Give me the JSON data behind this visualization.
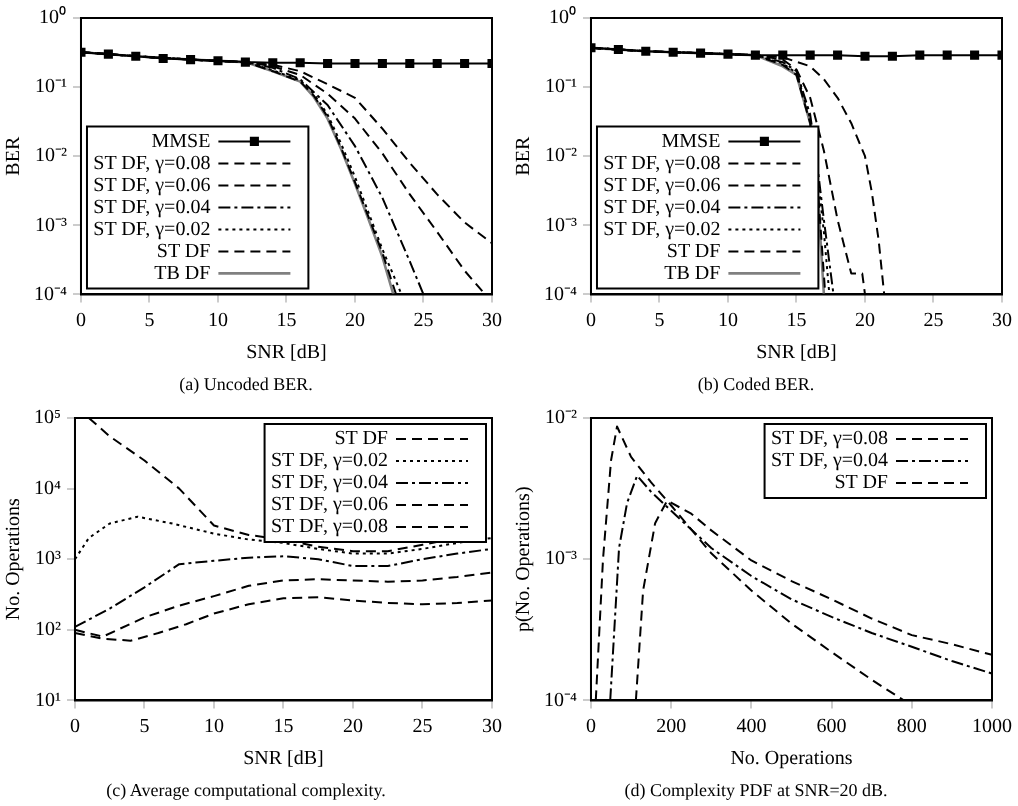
{
  "chart_data": [
    {
      "type": "line",
      "title": "(a) Uncoded BER.",
      "xlabel": "SNR [dB]",
      "ylabel": "BER",
      "log": "y",
      "grid": false,
      "legend": "bottom left",
      "xlim": [
        0,
        30
      ],
      "xticks": [
        0,
        5,
        10,
        15,
        20,
        25,
        30
      ],
      "ylim": [
        0.0001,
        1
      ],
      "yticks": [
        {
          "value": 0.0001,
          "label": "10⁻⁴"
        },
        {
          "value": 0.001,
          "label": "10⁻³"
        },
        {
          "value": 0.01,
          "label": "10⁻²"
        },
        {
          "value": 0.1,
          "label": "10⁻¹"
        },
        {
          "value": 1,
          "label": "10⁰"
        }
      ],
      "series": [
        {
          "name": "MMSE",
          "color": "#000000",
          "marker": "square",
          "line_style": "solid",
          "x": [
            0,
            2,
            4,
            6,
            8,
            10,
            12,
            14,
            16,
            18,
            20,
            22,
            24,
            26,
            28,
            30
          ],
          "values": [
            0.32,
            0.3,
            0.28,
            0.26,
            0.25,
            0.24,
            0.23,
            0.225,
            0.225,
            0.22,
            0.22,
            0.22,
            0.22,
            0.22,
            0.22,
            0.22
          ]
        },
        {
          "name": "ST DF, γ=0.08",
          "color": "#000000",
          "marker": "none",
          "line_style": "dashed",
          "x": [
            0,
            4,
            8,
            12,
            14,
            16,
            18,
            20,
            22,
            24,
            26,
            28,
            30
          ],
          "values": [
            0.32,
            0.28,
            0.25,
            0.23,
            0.21,
            0.17,
            0.11,
            0.07,
            0.025,
            0.008,
            0.0028,
            0.0011,
            0.00055
          ]
        },
        {
          "name": "ST DF, γ=0.06",
          "color": "#000000",
          "marker": "none",
          "line_style": "dashed",
          "x": [
            0,
            4,
            8,
            12,
            14,
            16,
            18,
            20,
            22,
            24,
            26,
            28,
            29.5
          ],
          "values": [
            0.32,
            0.28,
            0.25,
            0.23,
            0.2,
            0.15,
            0.08,
            0.035,
            0.011,
            0.0028,
            0.0008,
            0.00022,
            0.0001
          ]
        },
        {
          "name": "ST DF, γ=0.04",
          "color": "#000000",
          "marker": "none",
          "line_style": "dashdot",
          "x": [
            0,
            4,
            8,
            12,
            14,
            16,
            18,
            20,
            22,
            24,
            25
          ],
          "values": [
            0.32,
            0.28,
            0.25,
            0.23,
            0.19,
            0.13,
            0.055,
            0.014,
            0.0025,
            0.0003,
            0.0001
          ]
        },
        {
          "name": "ST DF, γ=0.02",
          "color": "#000000",
          "marker": "none",
          "line_style": "dotted",
          "x": [
            0,
            4,
            8,
            12,
            14,
            16,
            17,
            18,
            19,
            20,
            21,
            22,
            23.4
          ],
          "values": [
            0.32,
            0.28,
            0.25,
            0.23,
            0.175,
            0.125,
            0.08,
            0.04,
            0.015,
            0.005,
            0.0015,
            0.00045,
            0.0001
          ]
        },
        {
          "name": "ST DF",
          "color": "#000000",
          "marker": "none",
          "line_style": "dashed",
          "x": [
            0,
            4,
            8,
            12,
            14,
            16,
            17,
            18,
            19,
            20,
            21,
            22,
            23
          ],
          "values": [
            0.32,
            0.28,
            0.25,
            0.23,
            0.17,
            0.12,
            0.075,
            0.037,
            0.013,
            0.0042,
            0.0013,
            0.0004,
            0.0001
          ]
        },
        {
          "name": "TB DF",
          "color": "#808080",
          "marker": "none",
          "line_style": "solid",
          "x": [
            0,
            4,
            8,
            12,
            14,
            16,
            17,
            18,
            19,
            20,
            21,
            22,
            22.8
          ],
          "values": [
            0.32,
            0.28,
            0.25,
            0.23,
            0.17,
            0.12,
            0.072,
            0.035,
            0.0125,
            0.004,
            0.0012,
            0.00035,
            0.0001
          ]
        }
      ]
    },
    {
      "type": "line",
      "title": "(b) Coded BER.",
      "xlabel": "SNR [dB]",
      "ylabel": "BER",
      "log": "y",
      "grid": false,
      "legend": "bottom left",
      "xlim": [
        0,
        30
      ],
      "xticks": [
        0,
        5,
        10,
        15,
        20,
        25,
        30
      ],
      "ylim": [
        0.0001,
        1
      ],
      "yticks": [
        {
          "value": 0.0001,
          "label": "10⁻⁴"
        },
        {
          "value": 0.001,
          "label": "10⁻³"
        },
        {
          "value": 0.01,
          "label": "10⁻²"
        },
        {
          "value": 0.1,
          "label": "10⁻¹"
        },
        {
          "value": 1,
          "label": "10⁰"
        }
      ],
      "series": [
        {
          "name": "MMSE",
          "color": "#000000",
          "marker": "square",
          "line_style": "solid",
          "x": [
            0,
            2,
            4,
            6,
            8,
            10,
            12,
            14,
            16,
            18,
            20,
            22,
            24,
            26,
            28,
            30
          ],
          "values": [
            0.37,
            0.35,
            0.33,
            0.32,
            0.31,
            0.3,
            0.29,
            0.29,
            0.29,
            0.29,
            0.28,
            0.28,
            0.29,
            0.29,
            0.29,
            0.29
          ]
        },
        {
          "name": "ST DF, γ=0.08",
          "color": "#000000",
          "marker": "none",
          "line_style": "dashed",
          "x": [
            0,
            4,
            8,
            12,
            14,
            16,
            17,
            18,
            19,
            20,
            20.5,
            21,
            21.4
          ],
          "values": [
            0.37,
            0.33,
            0.31,
            0.29,
            0.27,
            0.2,
            0.13,
            0.07,
            0.03,
            0.01,
            0.003,
            0.0006,
            0.0001
          ]
        },
        {
          "name": "ST DF, γ=0.06",
          "color": "#000000",
          "marker": "none",
          "line_style": "dashed",
          "x": [
            0,
            4,
            8,
            12,
            14,
            15,
            16,
            17,
            18,
            19,
            19.8,
            20
          ],
          "values": [
            0.37,
            0.33,
            0.31,
            0.29,
            0.25,
            0.18,
            0.07,
            0.012,
            0.0012,
            0.0002,
            0.0002,
            0.0001
          ]
        },
        {
          "name": "ST DF, γ=0.04",
          "color": "#000000",
          "marker": "none",
          "line_style": "dashdot",
          "x": [
            0,
            4,
            8,
            12,
            14,
            15,
            16,
            16.5,
            17,
            17.7
          ],
          "values": [
            0.37,
            0.33,
            0.31,
            0.29,
            0.23,
            0.17,
            0.04,
            0.008,
            0.0012,
            0.0001
          ]
        },
        {
          "name": "ST DF, γ=0.02",
          "color": "#000000",
          "marker": "none",
          "line_style": "dotted",
          "x": [
            0,
            4,
            8,
            12,
            14,
            15,
            16,
            16.5,
            17,
            17.4
          ],
          "values": [
            0.37,
            0.33,
            0.31,
            0.29,
            0.22,
            0.16,
            0.035,
            0.006,
            0.0008,
            0.0001
          ]
        },
        {
          "name": "ST DF",
          "color": "#000000",
          "marker": "none",
          "line_style": "dashed",
          "x": [
            0,
            4,
            8,
            12,
            14,
            15,
            16,
            16.5,
            17.1
          ],
          "values": [
            0.37,
            0.33,
            0.31,
            0.29,
            0.21,
            0.15,
            0.03,
            0.005,
            0.0001
          ]
        },
        {
          "name": "TB DF",
          "color": "#808080",
          "marker": "none",
          "line_style": "solid",
          "x": [
            0,
            4,
            8,
            12,
            14,
            15,
            16,
            16.5,
            17
          ],
          "values": [
            0.37,
            0.33,
            0.31,
            0.29,
            0.2,
            0.15,
            0.03,
            0.004,
            0.0001
          ]
        }
      ]
    },
    {
      "type": "line",
      "title": "(c) Average computational complexity.",
      "xlabel": "SNR [dB]",
      "ylabel": "No. Operations",
      "log": "y",
      "grid": false,
      "legend": "top right",
      "xlim": [
        0,
        30
      ],
      "xticks": [
        0,
        5,
        10,
        15,
        20,
        25,
        30
      ],
      "ylim": [
        10,
        100000
      ],
      "yticks": [
        {
          "value": 10,
          "label": "10¹"
        },
        {
          "value": 100,
          "label": "10²"
        },
        {
          "value": 1000,
          "label": "10³"
        },
        {
          "value": 10000,
          "label": "10⁴"
        },
        {
          "value": 100000,
          "label": "10⁵"
        }
      ],
      "series": [
        {
          "name": "ST DF",
          "color": "#000000",
          "marker": "none",
          "line_style": "dashed",
          "x": [
            1,
            2.5,
            5,
            7.5,
            10,
            12.5,
            15,
            17.5,
            20,
            22.5,
            25,
            27.5,
            30
          ],
          "values": [
            100000,
            55000,
            25000,
            10000,
            3000,
            2200,
            1900,
            1500,
            1300,
            1300,
            1600,
            2000,
            2500
          ]
        },
        {
          "name": "ST DF, γ=0.02",
          "color": "#000000",
          "marker": "none",
          "line_style": "dotted",
          "x": [
            0,
            1,
            2.5,
            4.5,
            7,
            10,
            12.5,
            15,
            17.5,
            20,
            22.5,
            25,
            27.5,
            30
          ],
          "values": [
            1000,
            2000,
            3200,
            4000,
            3200,
            2300,
            1900,
            1700,
            1400,
            1200,
            1200,
            1400,
            1700,
            2000
          ]
        },
        {
          "name": "ST DF, γ=0.04",
          "color": "#000000",
          "marker": "none",
          "line_style": "dashdot",
          "x": [
            0,
            2.5,
            5,
            7.5,
            10,
            12.5,
            15,
            17.5,
            20,
            22.5,
            25,
            27.5,
            30
          ],
          "values": [
            110,
            200,
            400,
            850,
            950,
            1050,
            1100,
            1000,
            800,
            800,
            1000,
            1200,
            1400
          ]
        },
        {
          "name": "ST DF, γ=0.06",
          "color": "#000000",
          "marker": "none",
          "line_style": "dashed",
          "x": [
            0,
            2,
            5,
            7.5,
            10,
            12.5,
            15,
            17.5,
            20,
            22.5,
            25,
            27.5,
            30
          ],
          "values": [
            100,
            80,
            150,
            220,
            300,
            420,
            500,
            520,
            500,
            480,
            500,
            560,
            650
          ]
        },
        {
          "name": "ST DF, γ=0.08",
          "color": "#000000",
          "marker": "none",
          "line_style": "dashed",
          "x": [
            0,
            2,
            4,
            6,
            8,
            10,
            12.5,
            15,
            17.5,
            20,
            22.5,
            25,
            27.5,
            30
          ],
          "values": [
            90,
            75,
            70,
            90,
            120,
            170,
            230,
            280,
            290,
            260,
            240,
            230,
            240,
            260
          ]
        }
      ]
    },
    {
      "type": "line",
      "title": "(d) Complexity PDF at SNR=20 dB.",
      "xlabel": "No. Operations",
      "ylabel": "p(No. Operations)",
      "log": "y",
      "grid": false,
      "legend": "top right",
      "xlim": [
        0,
        1000
      ],
      "xticks": [
        0,
        200,
        400,
        600,
        800,
        1000
      ],
      "ylim": [
        0.0001,
        0.01
      ],
      "yticks": [
        {
          "value": 0.0001,
          "label": "10⁻⁴"
        },
        {
          "value": 0.001,
          "label": "10⁻³"
        },
        {
          "value": 0.01,
          "label": "10⁻²"
        }
      ],
      "series": [
        {
          "name": "ST DF, γ=0.08",
          "color": "#000000",
          "marker": "none",
          "line_style": "dashed",
          "x": [
            12,
            30,
            50,
            65,
            100,
            150,
            200,
            300,
            400,
            500,
            600,
            700,
            780
          ],
          "values": [
            0.0001,
            0.001,
            0.005,
            0.0087,
            0.0053,
            0.0035,
            0.0024,
            0.0011,
            0.0006,
            0.00035,
            0.00022,
            0.00014,
            0.0001
          ]
        },
        {
          "name": "ST DF, γ=0.04",
          "color": "#000000",
          "marker": "none",
          "line_style": "dashdot",
          "x": [
            48,
            70,
            90,
            115,
            150,
            200,
            300,
            400,
            500,
            600,
            700,
            800,
            900,
            1000
          ],
          "values": [
            0.0001,
            0.0012,
            0.0025,
            0.0039,
            0.003,
            0.0022,
            0.0012,
            0.00076,
            0.00052,
            0.00039,
            0.0003,
            0.00024,
            0.00019,
            0.000155
          ]
        },
        {
          "name": "ST DF",
          "color": "#000000",
          "marker": "none",
          "line_style": "dashed",
          "x": [
            112,
            130,
            160,
            190,
            250,
            300,
            400,
            500,
            600,
            700,
            800,
            900,
            1000
          ],
          "values": [
            0.0001,
            0.0006,
            0.0018,
            0.0026,
            0.0021,
            0.0016,
            0.00098,
            0.0007,
            0.00052,
            0.00038,
            0.00029,
            0.00025,
            0.00021
          ]
        }
      ]
    }
  ]
}
